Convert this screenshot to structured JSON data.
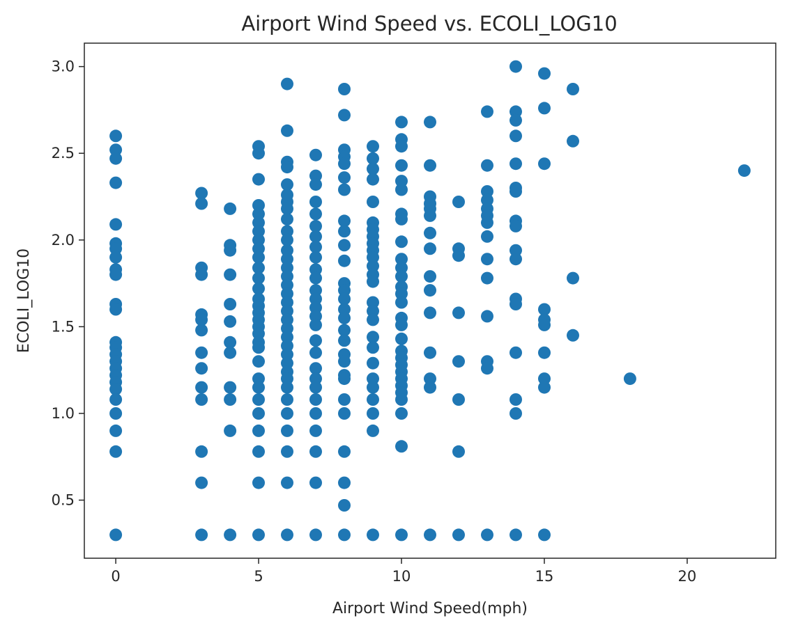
{
  "chart_data": {
    "type": "scatter",
    "title": "Airport Wind Speed vs. ECOLI_LOG10",
    "xlabel": "Airport Wind Speed(mph)",
    "ylabel": "ECOLI_LOG10",
    "xlim": [
      -1.1,
      23.1
    ],
    "ylim": [
      0.165,
      3.135
    ],
    "x_ticks": [
      0,
      5,
      10,
      15,
      20
    ],
    "x_tick_labels": [
      "0",
      "5",
      "10",
      "15",
      "20"
    ],
    "y_ticks": [
      0.5,
      1.0,
      1.5,
      2.0,
      2.5,
      3.0
    ],
    "y_tick_labels": [
      "0.5",
      "1.0",
      "1.5",
      "2.0",
      "2.5",
      "3.0"
    ],
    "grid": false,
    "legend": "none",
    "marker_color": "#1f77b4",
    "points": [
      [
        0,
        2.6
      ],
      [
        0,
        2.52
      ],
      [
        0,
        2.47
      ],
      [
        0,
        2.33
      ],
      [
        0,
        2.09
      ],
      [
        0,
        1.98
      ],
      [
        0,
        1.95
      ],
      [
        0,
        1.9
      ],
      [
        0,
        1.83
      ],
      [
        0,
        1.8
      ],
      [
        0,
        1.63
      ],
      [
        0,
        1.6
      ],
      [
        0,
        1.41
      ],
      [
        0,
        1.38
      ],
      [
        0,
        1.34
      ],
      [
        0,
        1.3
      ],
      [
        0,
        1.26
      ],
      [
        0,
        1.22
      ],
      [
        0,
        1.18
      ],
      [
        0,
        1.14
      ],
      [
        0,
        1.08
      ],
      [
        0,
        1.0
      ],
      [
        0,
        0.9
      ],
      [
        0,
        0.78
      ],
      [
        0,
        0.3
      ],
      [
        3,
        2.27
      ],
      [
        3,
        2.21
      ],
      [
        3,
        1.84
      ],
      [
        3,
        1.8
      ],
      [
        3,
        1.57
      ],
      [
        3,
        1.54
      ],
      [
        3,
        1.48
      ],
      [
        3,
        1.35
      ],
      [
        3,
        1.26
      ],
      [
        3,
        1.15
      ],
      [
        3,
        1.08
      ],
      [
        3,
        0.78
      ],
      [
        3,
        0.6
      ],
      [
        3,
        0.3
      ],
      [
        4,
        2.18
      ],
      [
        4,
        1.97
      ],
      [
        4,
        1.94
      ],
      [
        4,
        1.8
      ],
      [
        4,
        1.63
      ],
      [
        4,
        1.53
      ],
      [
        4,
        1.41
      ],
      [
        4,
        1.35
      ],
      [
        4,
        1.15
      ],
      [
        4,
        1.08
      ],
      [
        4,
        0.9
      ],
      [
        4,
        0.3
      ],
      [
        5,
        2.54
      ],
      [
        5,
        2.5
      ],
      [
        5,
        2.35
      ],
      [
        5,
        2.2
      ],
      [
        5,
        2.15
      ],
      [
        5,
        2.1
      ],
      [
        5,
        2.05
      ],
      [
        5,
        2.0
      ],
      [
        5,
        1.95
      ],
      [
        5,
        1.9
      ],
      [
        5,
        1.84
      ],
      [
        5,
        1.78
      ],
      [
        5,
        1.72
      ],
      [
        5,
        1.66
      ],
      [
        5,
        1.62
      ],
      [
        5,
        1.58
      ],
      [
        5,
        1.54
      ],
      [
        5,
        1.5
      ],
      [
        5,
        1.46
      ],
      [
        5,
        1.41
      ],
      [
        5,
        1.38
      ],
      [
        5,
        1.3
      ],
      [
        5,
        1.2
      ],
      [
        5,
        1.15
      ],
      [
        5,
        1.08
      ],
      [
        5,
        1.0
      ],
      [
        5,
        0.9
      ],
      [
        5,
        0.78
      ],
      [
        5,
        0.6
      ],
      [
        5,
        0.3
      ],
      [
        6,
        2.9
      ],
      [
        6,
        2.63
      ],
      [
        6,
        2.45
      ],
      [
        6,
        2.42
      ],
      [
        6,
        2.32
      ],
      [
        6,
        2.26
      ],
      [
        6,
        2.22
      ],
      [
        6,
        2.18
      ],
      [
        6,
        2.12
      ],
      [
        6,
        2.05
      ],
      [
        6,
        2.0
      ],
      [
        6,
        1.94
      ],
      [
        6,
        1.89
      ],
      [
        6,
        1.84
      ],
      [
        6,
        1.79
      ],
      [
        6,
        1.74
      ],
      [
        6,
        1.69
      ],
      [
        6,
        1.64
      ],
      [
        6,
        1.59
      ],
      [
        6,
        1.54
      ],
      [
        6,
        1.49
      ],
      [
        6,
        1.44
      ],
      [
        6,
        1.39
      ],
      [
        6,
        1.34
      ],
      [
        6,
        1.29
      ],
      [
        6,
        1.24
      ],
      [
        6,
        1.2
      ],
      [
        6,
        1.15
      ],
      [
        6,
        1.08
      ],
      [
        6,
        1.0
      ],
      [
        6,
        0.9
      ],
      [
        6,
        0.78
      ],
      [
        6,
        0.6
      ],
      [
        6,
        0.3
      ],
      [
        7,
        2.49
      ],
      [
        7,
        2.37
      ],
      [
        7,
        2.32
      ],
      [
        7,
        2.22
      ],
      [
        7,
        2.15
      ],
      [
        7,
        2.08
      ],
      [
        7,
        2.02
      ],
      [
        7,
        1.96
      ],
      [
        7,
        1.9
      ],
      [
        7,
        1.83
      ],
      [
        7,
        1.78
      ],
      [
        7,
        1.71
      ],
      [
        7,
        1.66
      ],
      [
        7,
        1.61
      ],
      [
        7,
        1.56
      ],
      [
        7,
        1.51
      ],
      [
        7,
        1.42
      ],
      [
        7,
        1.35
      ],
      [
        7,
        1.26
      ],
      [
        7,
        1.2
      ],
      [
        7,
        1.15
      ],
      [
        7,
        1.08
      ],
      [
        7,
        1.0
      ],
      [
        7,
        0.9
      ],
      [
        7,
        0.78
      ],
      [
        7,
        0.6
      ],
      [
        7,
        0.3
      ],
      [
        8,
        2.87
      ],
      [
        8,
        2.72
      ],
      [
        8,
        2.52
      ],
      [
        8,
        2.48
      ],
      [
        8,
        2.44
      ],
      [
        8,
        2.36
      ],
      [
        8,
        2.29
      ],
      [
        8,
        2.11
      ],
      [
        8,
        2.05
      ],
      [
        8,
        1.97
      ],
      [
        8,
        1.88
      ],
      [
        8,
        1.75
      ],
      [
        8,
        1.71
      ],
      [
        8,
        1.66
      ],
      [
        8,
        1.6
      ],
      [
        8,
        1.55
      ],
      [
        8,
        1.48
      ],
      [
        8,
        1.42
      ],
      [
        8,
        1.34
      ],
      [
        8,
        1.3
      ],
      [
        8,
        1.22
      ],
      [
        8,
        1.2
      ],
      [
        8,
        1.08
      ],
      [
        8,
        1.0
      ],
      [
        8,
        0.78
      ],
      [
        8,
        0.6
      ],
      [
        8,
        0.47
      ],
      [
        8,
        0.3
      ],
      [
        9,
        2.54
      ],
      [
        9,
        2.47
      ],
      [
        9,
        2.41
      ],
      [
        9,
        2.35
      ],
      [
        9,
        2.22
      ],
      [
        9,
        2.1
      ],
      [
        9,
        2.06
      ],
      [
        9,
        2.02
      ],
      [
        9,
        1.98
      ],
      [
        9,
        1.94
      ],
      [
        9,
        1.9
      ],
      [
        9,
        1.85
      ],
      [
        9,
        1.8
      ],
      [
        9,
        1.76
      ],
      [
        9,
        1.64
      ],
      [
        9,
        1.59
      ],
      [
        9,
        1.54
      ],
      [
        9,
        1.44
      ],
      [
        9,
        1.38
      ],
      [
        9,
        1.29
      ],
      [
        9,
        1.2
      ],
      [
        9,
        1.15
      ],
      [
        9,
        1.08
      ],
      [
        9,
        1.0
      ],
      [
        9,
        0.9
      ],
      [
        9,
        0.3
      ],
      [
        10,
        2.68
      ],
      [
        10,
        2.58
      ],
      [
        10,
        2.54
      ],
      [
        10,
        2.43
      ],
      [
        10,
        2.34
      ],
      [
        10,
        2.29
      ],
      [
        10,
        2.15
      ],
      [
        10,
        2.12
      ],
      [
        10,
        1.99
      ],
      [
        10,
        1.89
      ],
      [
        10,
        1.84
      ],
      [
        10,
        1.79
      ],
      [
        10,
        1.73
      ],
      [
        10,
        1.69
      ],
      [
        10,
        1.64
      ],
      [
        10,
        1.55
      ],
      [
        10,
        1.51
      ],
      [
        10,
        1.43
      ],
      [
        10,
        1.36
      ],
      [
        10,
        1.32
      ],
      [
        10,
        1.28
      ],
      [
        10,
        1.24
      ],
      [
        10,
        1.2
      ],
      [
        10,
        1.16
      ],
      [
        10,
        1.12
      ],
      [
        10,
        1.08
      ],
      [
        10,
        1.0
      ],
      [
        10,
        0.81
      ],
      [
        10,
        0.3
      ],
      [
        11,
        2.68
      ],
      [
        11,
        2.43
      ],
      [
        11,
        2.25
      ],
      [
        11,
        2.21
      ],
      [
        11,
        2.18
      ],
      [
        11,
        2.14
      ],
      [
        11,
        2.04
      ],
      [
        11,
        1.95
      ],
      [
        11,
        1.79
      ],
      [
        11,
        1.71
      ],
      [
        11,
        1.58
      ],
      [
        11,
        1.35
      ],
      [
        11,
        1.2
      ],
      [
        11,
        1.15
      ],
      [
        11,
        0.3
      ],
      [
        12,
        2.22
      ],
      [
        12,
        1.95
      ],
      [
        12,
        1.91
      ],
      [
        12,
        1.58
      ],
      [
        12,
        1.3
      ],
      [
        12,
        1.08
      ],
      [
        12,
        0.78
      ],
      [
        12,
        0.3
      ],
      [
        13,
        2.74
      ],
      [
        13,
        2.43
      ],
      [
        13,
        2.28
      ],
      [
        13,
        2.23
      ],
      [
        13,
        2.18
      ],
      [
        13,
        2.14
      ],
      [
        13,
        2.1
      ],
      [
        13,
        2.02
      ],
      [
        13,
        1.89
      ],
      [
        13,
        1.78
      ],
      [
        13,
        1.56
      ],
      [
        13,
        1.3
      ],
      [
        13,
        1.26
      ],
      [
        13,
        0.3
      ],
      [
        14,
        3.0
      ],
      [
        14,
        2.74
      ],
      [
        14,
        2.69
      ],
      [
        14,
        2.6
      ],
      [
        14,
        2.44
      ],
      [
        14,
        2.3
      ],
      [
        14,
        2.28
      ],
      [
        14,
        2.11
      ],
      [
        14,
        2.08
      ],
      [
        14,
        1.94
      ],
      [
        14,
        1.89
      ],
      [
        14,
        1.66
      ],
      [
        14,
        1.63
      ],
      [
        14,
        1.35
      ],
      [
        14,
        1.08
      ],
      [
        14,
        1.0
      ],
      [
        14,
        0.3
      ],
      [
        15,
        2.96
      ],
      [
        15,
        2.76
      ],
      [
        15,
        2.44
      ],
      [
        15,
        1.6
      ],
      [
        15,
        1.54
      ],
      [
        15,
        1.51
      ],
      [
        15,
        1.35
      ],
      [
        15,
        1.2
      ],
      [
        15,
        1.15
      ],
      [
        15,
        0.3
      ],
      [
        16,
        2.87
      ],
      [
        16,
        2.57
      ],
      [
        16,
        1.78
      ],
      [
        16,
        1.45
      ],
      [
        18,
        1.2
      ],
      [
        22,
        2.4
      ]
    ]
  }
}
